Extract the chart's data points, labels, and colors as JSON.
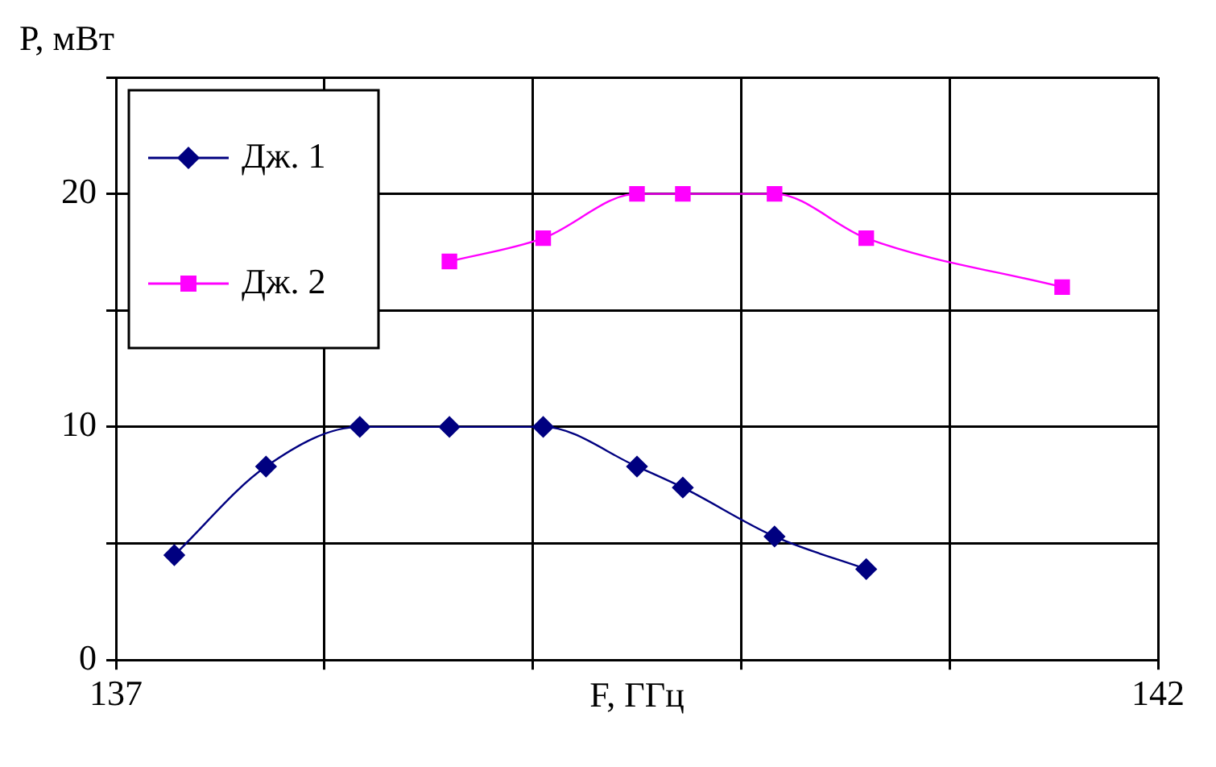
{
  "chart_data": {
    "type": "line",
    "xlabel": "F, ГГц",
    "ylabel": "P, мВт",
    "xlim": [
      137,
      142
    ],
    "xticks": [
      137,
      {
        "value": 138,
        "label": null
      },
      {
        "value": 139,
        "label": null
      },
      {
        "value": 140,
        "label": null
      },
      {
        "value": 141,
        "label": null
      },
      142
    ],
    "ylim": [
      0,
      25
    ],
    "yticks": [
      0,
      {
        "value": 5,
        "label": null
      },
      10,
      {
        "value": 15,
        "label": null
      },
      20,
      {
        "value": 25,
        "label": null
      }
    ],
    "grid": true,
    "legend": "top left",
    "series": [
      {
        "name": "Дж. 1",
        "color": "#000080",
        "marker": "diamond",
        "x": [
          137.28,
          137.72,
          138.17,
          138.6,
          139.05,
          139.5,
          139.72,
          140.16,
          140.6
        ],
        "values": [
          4.5,
          8.3,
          10,
          10,
          10,
          8.3,
          7.4,
          5.3,
          3.9
        ]
      },
      {
        "name": "Дж. 2",
        "color": "#ff00ff",
        "marker": "square",
        "x": [
          138.6,
          139.05,
          139.5,
          139.72,
          140.16,
          140.6,
          141.54
        ],
        "values": [
          17.1,
          18.1,
          20,
          20,
          20,
          18.1,
          16
        ]
      }
    ]
  }
}
